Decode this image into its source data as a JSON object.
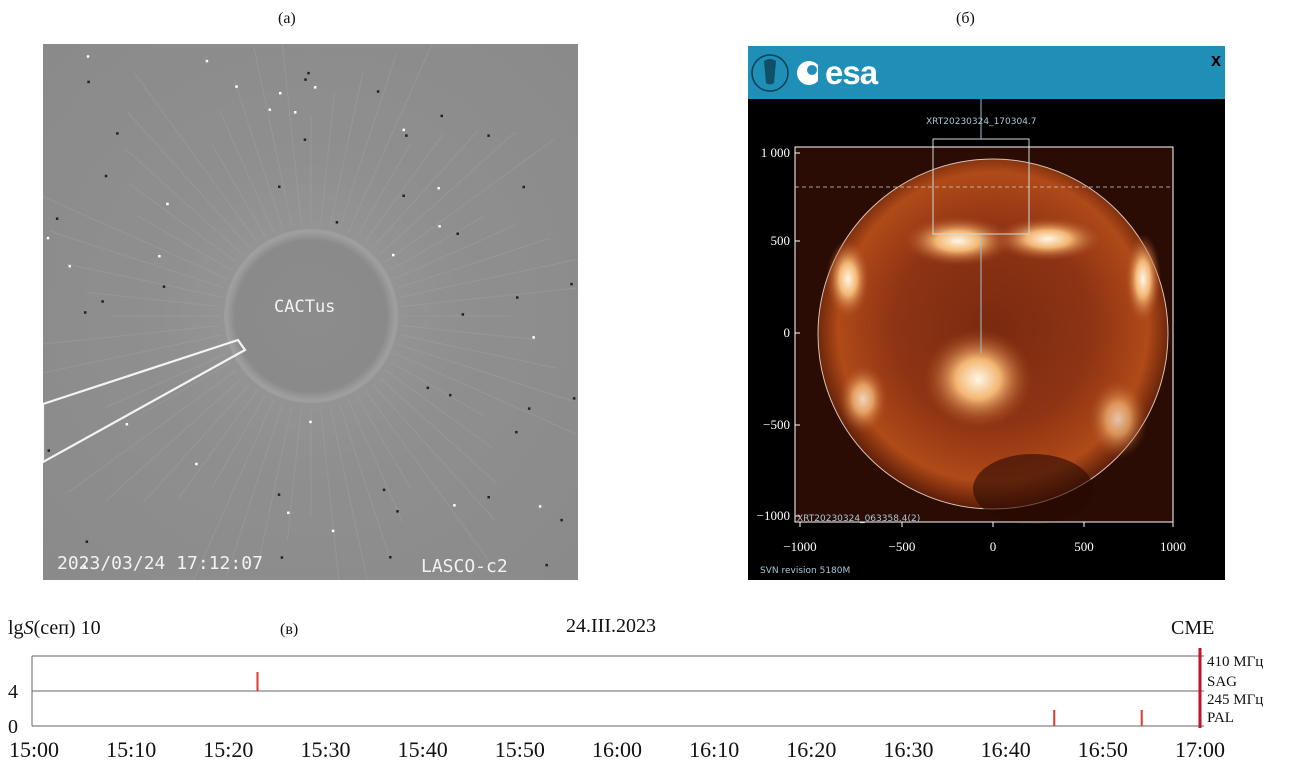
{
  "labels": {
    "a": "(а)",
    "b": "(б)",
    "c": "(в)"
  },
  "panel_a": {
    "center_text": "CACTus",
    "timestamp": "2023/03/24 17:12:07",
    "instrument": "LASCO-c2"
  },
  "panel_b": {
    "logo_text": "esa",
    "close_text": "x",
    "image_title": "XRT20230324_170304.7",
    "image_footer": "XRT20230324_063358.4(2)",
    "revision": "SVN revision 5180M",
    "y_ticks": [
      "1 000",
      "500",
      "0",
      "−500",
      "−1000"
    ],
    "x_ticks": [
      "−1000",
      "−500",
      "0",
      "500",
      "1000"
    ]
  },
  "chart_data": {
    "type": "table",
    "title": "24.III.2023",
    "ylabel_prefix": "lg",
    "ylabel_var": "S",
    "ylabel_suffix": "(сеп) 10",
    "y_ticks": [
      "4",
      "0"
    ],
    "x_ticks": [
      "15:00",
      "15:10",
      "15:20",
      "15:30",
      "15:40",
      "15:50",
      "16:00",
      "16:10",
      "16:20",
      "16:30",
      "16:40",
      "16:50",
      "17:00"
    ],
    "right_labels": [
      "410 МГц",
      "SAG",
      "245 МГц",
      "PAL"
    ],
    "event_label": "CME",
    "event_time": "17:00",
    "bursts": [
      {
        "station": "SAG",
        "time": "15:23"
      },
      {
        "station": "PAL",
        "time": "16:45"
      },
      {
        "station": "PAL",
        "time": "16:54"
      }
    ],
    "colors": {
      "burst": "#e0392b",
      "event": "#c8102e"
    }
  }
}
